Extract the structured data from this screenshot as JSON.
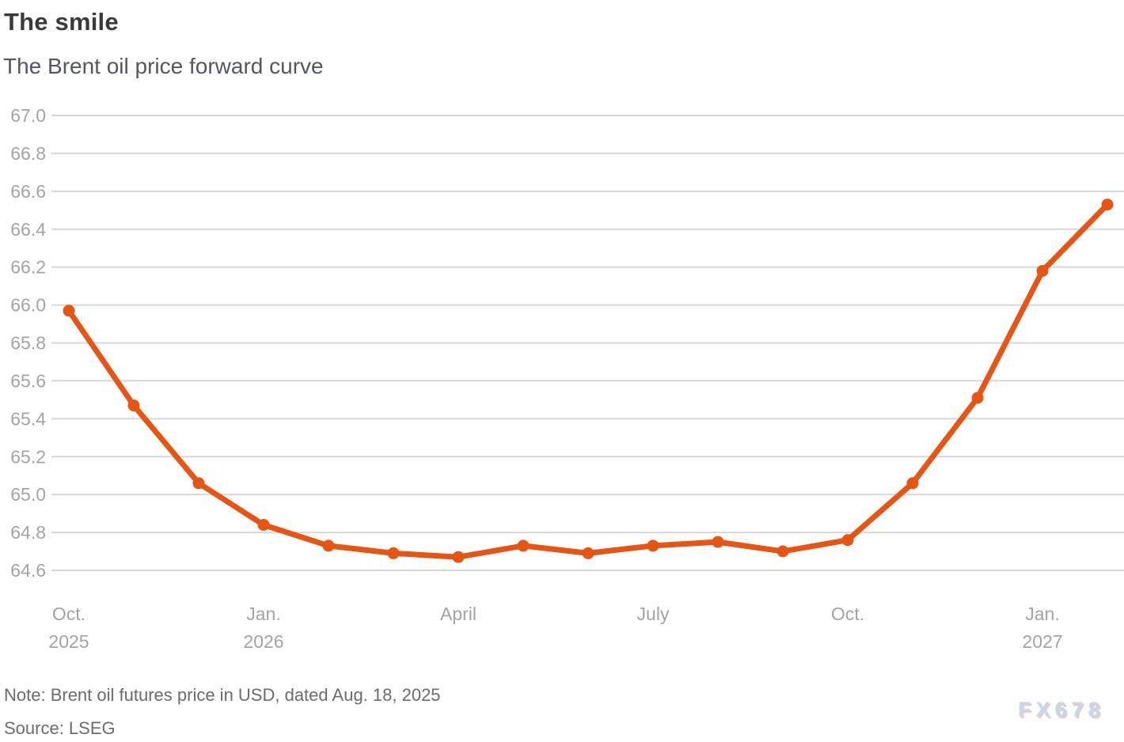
{
  "header": {
    "title": "The smile",
    "subtitle": "The Brent oil price forward curve"
  },
  "footer": {
    "note": "Note: Brent oil futures price in USD, dated Aug. 18, 2025",
    "source": "Source: LSEG",
    "watermark": "FX678"
  },
  "chart_data": {
    "type": "line",
    "title": "The smile",
    "subtitle": "The Brent oil price forward curve",
    "series_name": "Brent oil futures price (USD)",
    "x": [
      "Oct. 2025",
      "Nov. 2025",
      "Dec. 2025",
      "Jan. 2026",
      "Feb. 2026",
      "Mar. 2026",
      "Apr. 2026",
      "May 2026",
      "Jun. 2026",
      "Jul. 2026",
      "Aug. 2026",
      "Sep. 2026",
      "Oct. 2026",
      "Nov. 2026",
      "Dec. 2026",
      "Jan. 2027",
      "Feb. 2027"
    ],
    "values": [
      65.97,
      65.47,
      65.06,
      64.84,
      64.73,
      64.69,
      64.67,
      64.73,
      64.69,
      64.73,
      64.75,
      64.7,
      64.76,
      65.06,
      65.51,
      66.18,
      66.53
    ],
    "ylim": [
      64.6,
      67.0
    ],
    "yticks": [
      "67.0",
      "66.8",
      "66.6",
      "66.4",
      "66.2",
      "66.0",
      "65.8",
      "65.6",
      "65.4",
      "65.2",
      "65.0",
      "64.8",
      "64.6"
    ],
    "xticks": [
      {
        "index": 0,
        "line1": "Oct.",
        "line2": "2025"
      },
      {
        "index": 3,
        "line1": "Jan.",
        "line2": "2026"
      },
      {
        "index": 6,
        "line1": "April",
        "line2": ""
      },
      {
        "index": 9,
        "line1": "July",
        "line2": ""
      },
      {
        "index": 12,
        "line1": "Oct.",
        "line2": ""
      },
      {
        "index": 15,
        "line1": "Jan.",
        "line2": "2027"
      }
    ],
    "grid": true,
    "legend": "none",
    "line_color": "#e65514",
    "grid_color": "#d8d8d8",
    "axis_label_color": "#a4a4a4"
  }
}
